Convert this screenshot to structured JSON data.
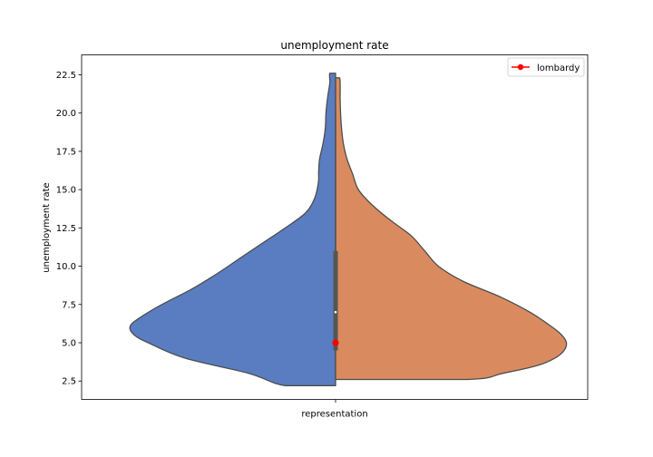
{
  "chart_data": {
    "type": "violin",
    "title": "unemployment rate",
    "xlabel": "",
    "ylabel": "unemployment rate",
    "categories": [
      "representation"
    ],
    "ylim": [
      1.3,
      23.8
    ],
    "yticks": [
      2.5,
      5.0,
      7.5,
      10.0,
      12.5,
      15.0,
      17.5,
      20.0,
      22.5
    ],
    "ytick_labels": [
      "2.5",
      "5.0",
      "7.5",
      "10.0",
      "12.5",
      "15.0",
      "17.5",
      "20.0",
      "22.5"
    ],
    "grid": false,
    "legend": {
      "placement": "top-right",
      "entries": [
        "lombardy"
      ]
    },
    "series": [
      {
        "side": "left",
        "color": "#5a7dc1",
        "density": [
          [
            2.2,
            0.22
          ],
          [
            3.0,
            0.38
          ],
          [
            4.0,
            0.66
          ],
          [
            5.0,
            0.82
          ],
          [
            5.5,
            0.88
          ],
          [
            6.0,
            0.9
          ],
          [
            6.5,
            0.87
          ],
          [
            7.5,
            0.76
          ],
          [
            8.5,
            0.63
          ],
          [
            9.5,
            0.52
          ],
          [
            10.5,
            0.42
          ],
          [
            11.5,
            0.32
          ],
          [
            12.5,
            0.22
          ],
          [
            13.5,
            0.13
          ],
          [
            14.5,
            0.09
          ],
          [
            15.5,
            0.075
          ],
          [
            16.2,
            0.074
          ],
          [
            17.0,
            0.07
          ],
          [
            18.0,
            0.055
          ],
          [
            19.0,
            0.045
          ],
          [
            20.0,
            0.042
          ],
          [
            21.0,
            0.035
          ],
          [
            22.0,
            0.025
          ],
          [
            22.6,
            0.025
          ]
        ]
      },
      {
        "side": "right",
        "color": "#d98b5f",
        "density": [
          [
            2.6,
            0.58
          ],
          [
            3.0,
            0.73
          ],
          [
            3.5,
            0.88
          ],
          [
            4.0,
            0.96
          ],
          [
            4.5,
            1.0
          ],
          [
            5.0,
            1.01
          ],
          [
            5.5,
            0.99
          ],
          [
            6.0,
            0.95
          ],
          [
            7.0,
            0.85
          ],
          [
            8.0,
            0.72
          ],
          [
            9.0,
            0.56
          ],
          [
            10.0,
            0.45
          ],
          [
            11.0,
            0.39
          ],
          [
            12.0,
            0.33
          ],
          [
            13.0,
            0.24
          ],
          [
            14.0,
            0.16
          ],
          [
            15.0,
            0.1
          ],
          [
            16.0,
            0.075
          ],
          [
            17.0,
            0.05
          ],
          [
            18.0,
            0.034
          ],
          [
            19.0,
            0.026
          ],
          [
            20.0,
            0.022
          ],
          [
            21.0,
            0.02
          ],
          [
            22.0,
            0.02
          ],
          [
            22.3,
            0.017
          ]
        ]
      }
    ],
    "box": {
      "q1": 4.5,
      "median": 7.0,
      "q3": 11.0,
      "whisker_low": 4.5,
      "whisker_high": 20.2,
      "color": "#555555"
    },
    "highlight": {
      "name": "lombardy",
      "value": 5.0,
      "color": "#ff0000"
    }
  }
}
